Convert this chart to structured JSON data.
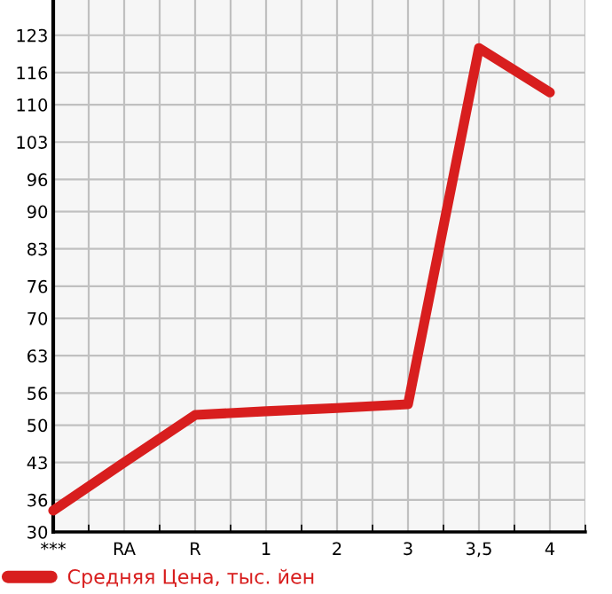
{
  "chart_data": {
    "type": "line",
    "categories": [
      "***",
      "RA",
      "R",
      "1",
      "2",
      "3",
      "3,5",
      "4"
    ],
    "series": [
      {
        "name": "Средняя Цена, тыс. йен",
        "color": "#d81e1e",
        "values": [
          34,
          43,
          51.9,
          52.6,
          53.2,
          53.9,
          120.6,
          112.3
        ]
      }
    ],
    "ylim": [
      30,
      129.6
    ],
    "yticks": [
      30,
      36,
      43,
      50,
      56,
      63,
      70,
      76,
      83,
      90,
      96,
      103,
      110,
      116,
      123
    ],
    "grid": true,
    "legend": "bottom",
    "marker": "none",
    "line_style": "solid"
  }
}
